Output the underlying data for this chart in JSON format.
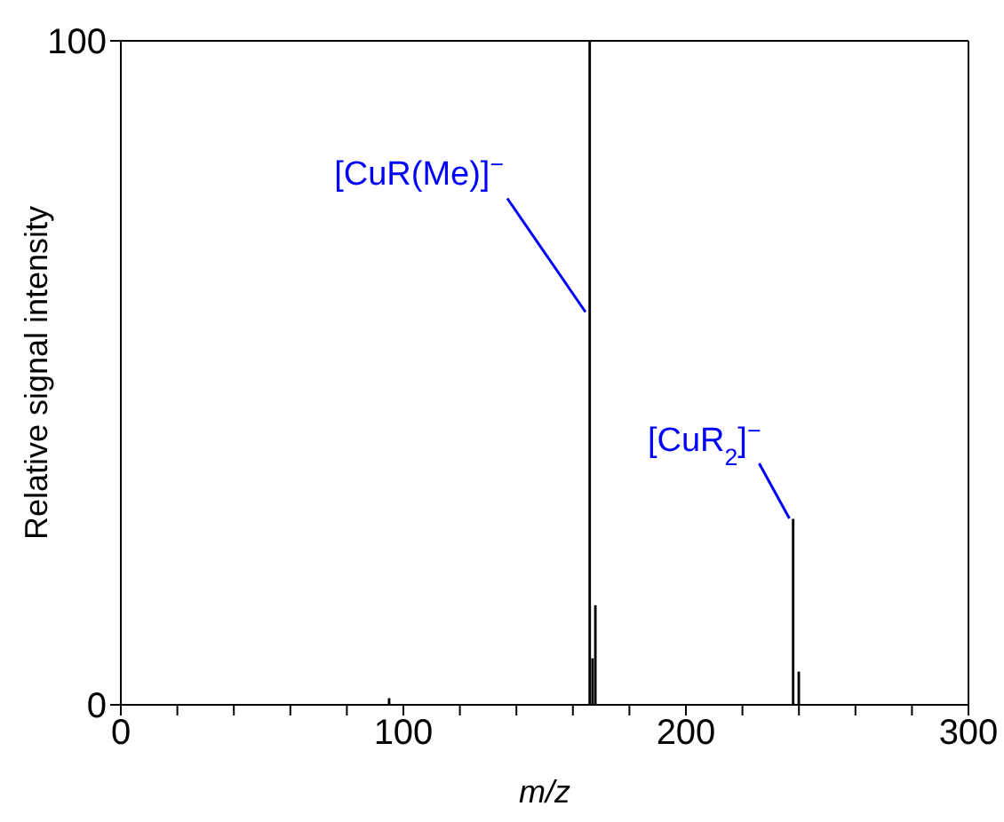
{
  "chart_data": {
    "type": "bar",
    "xlabel": "m/z",
    "ylabel": "Relative signal intensity",
    "x": [
      95,
      166,
      167,
      168,
      238,
      240
    ],
    "values": [
      1,
      100,
      7,
      15,
      28,
      5
    ],
    "color": "#000000",
    "xlim": [
      0,
      300
    ],
    "xticks": [
      0,
      {
        "value": 20,
        "label": null
      },
      {
        "value": 40,
        "label": null
      },
      {
        "value": 60,
        "label": null
      },
      {
        "value": 80,
        "label": null
      },
      100,
      {
        "value": 120,
        "label": null
      },
      {
        "value": 140,
        "label": null
      },
      {
        "value": 160,
        "label": null
      },
      {
        "value": 180,
        "label": null
      },
      200,
      {
        "value": 220,
        "label": null
      },
      {
        "value": 240,
        "label": null
      },
      {
        "value": 260,
        "label": null
      },
      {
        "value": 280,
        "label": null
      },
      300
    ],
    "ylim": [
      0,
      100
    ],
    "yticks": [
      0,
      100
    ],
    "annotations": [
      {
        "text": "[CuR(Me)]$^{−}$",
        "x": 166,
        "y": 59
      },
      {
        "text": "[CuR$_{2}$]$^{−}$",
        "x": 238,
        "y": 28
      }
    ]
  }
}
